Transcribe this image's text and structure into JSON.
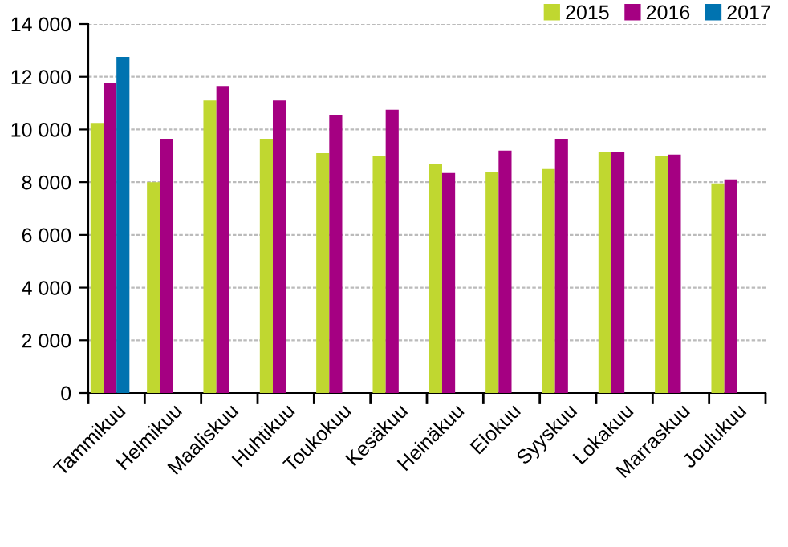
{
  "chart_data": {
    "type": "bar",
    "categories": [
      "Tammikuu",
      "Helmikuu",
      "Maaliskuu",
      "Huhtikuu",
      "Toukokuu",
      "Kesäkuu",
      "Heinäkuu",
      "Elokuu",
      "Syyskuu",
      "Lokakuu",
      "Marraskuu",
      "Joulukuu"
    ],
    "series": [
      {
        "name": "2015",
        "color": "#c0d730",
        "values": [
          10250,
          8000,
          11100,
          9650,
          9100,
          9000,
          8700,
          8400,
          8500,
          9150,
          9000,
          7950
        ]
      },
      {
        "name": "2016",
        "color": "#a50082",
        "values": [
          11750,
          9650,
          11650,
          11100,
          10550,
          10750,
          8350,
          9200,
          9650,
          9150,
          9050,
          8100
        ]
      },
      {
        "name": "2017",
        "color": "#0073b0",
        "values": [
          12750,
          null,
          null,
          null,
          null,
          null,
          null,
          null,
          null,
          null,
          null,
          null
        ]
      }
    ],
    "ylim": [
      0,
      14000
    ],
    "yticks": [
      {
        "value": 0,
        "label": "0"
      },
      {
        "value": 2000,
        "label": "2 000"
      },
      {
        "value": 4000,
        "label": "4 000"
      },
      {
        "value": 6000,
        "label": "6 000"
      },
      {
        "value": 8000,
        "label": "8 000"
      },
      {
        "value": 10000,
        "label": "10 000"
      },
      {
        "value": 12000,
        "label": "12 000"
      },
      {
        "value": 14000,
        "label": "14 000"
      }
    ],
    "grid": "y",
    "legend": "top right"
  }
}
